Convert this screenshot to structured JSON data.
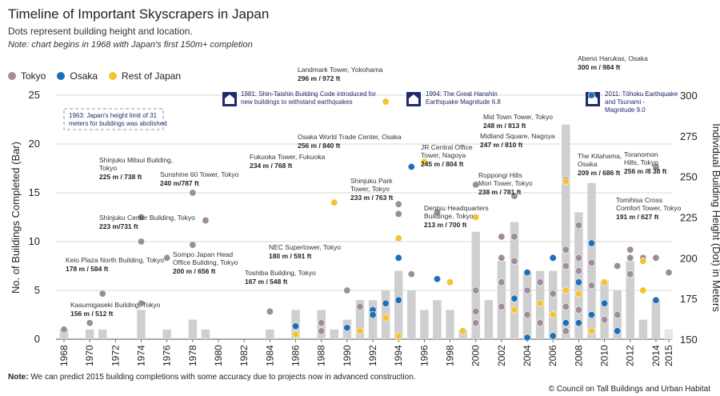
{
  "title": "Timeline of Important Skyscrapers in Japan",
  "subtitle": "Dots represent building height and location.",
  "note_top": "Note: chart begins in 1968 with Japan's first 150m+ completion",
  "legend": [
    {
      "label": "Tokyo",
      "color": "#a08b9c"
    },
    {
      "label": "Osaka",
      "color": "#1d6fb8"
    },
    {
      "label": "Rest of Japan",
      "color": "#f5c330"
    }
  ],
  "footnote_label": "Note:",
  "footnote_text": " We can predict 2015 building completions with some accuracy due to projects now in advanced construction.",
  "credit": "© Council on Tall Buildings and Urban Habitat",
  "chart_data": {
    "type": "bar",
    "xlabel": "",
    "ylabel": "No. of Buildings Completed (Bar)",
    "y2label": "Individual Building Height (Dot) in Meters",
    "ylim": [
      0,
      25
    ],
    "y2lim": [
      150,
      300
    ],
    "yticks": [
      0,
      5,
      10,
      15,
      20,
      25
    ],
    "y2ticks": [
      150,
      175,
      200,
      225,
      250,
      275,
      300
    ],
    "xticks": [
      1968,
      1970,
      1972,
      1974,
      1976,
      1978,
      1980,
      1982,
      1984,
      1986,
      1988,
      1990,
      1992,
      1994,
      1996,
      1998,
      2000,
      2002,
      2004,
      2006,
      2008,
      2010,
      2012,
      2014,
      2015
    ],
    "years": [
      1968,
      1969,
      1970,
      1971,
      1972,
      1973,
      1974,
      1975,
      1976,
      1977,
      1978,
      1979,
      1980,
      1981,
      1982,
      1983,
      1984,
      1985,
      1986,
      1987,
      1988,
      1989,
      1990,
      1991,
      1992,
      1993,
      1994,
      1995,
      1996,
      1997,
      1998,
      1999,
      2000,
      2001,
      2002,
      2003,
      2004,
      2005,
      2006,
      2007,
      2008,
      2009,
      2010,
      2011,
      2012,
      2013,
      2014,
      2015
    ],
    "bar_values": [
      1,
      0,
      1,
      1,
      0,
      0,
      3,
      0,
      1,
      0,
      2,
      1,
      0,
      0,
      0,
      0,
      1,
      0,
      3,
      0,
      3,
      1,
      2,
      4,
      4,
      5,
      7,
      5,
      3,
      4,
      3,
      1,
      11,
      4,
      8,
      12,
      7,
      7,
      7,
      22,
      13,
      16,
      6,
      5,
      8,
      2,
      4,
      1
    ],
    "grid": "horizontal",
    "legend_position": "top-left",
    "dots": [
      {
        "year": 1968,
        "height": 156,
        "city": "Tokyo"
      },
      {
        "year": 1970,
        "height": 160,
        "city": "Tokyo"
      },
      {
        "year": 1971,
        "height": 178,
        "city": "Tokyo"
      },
      {
        "year": 1974,
        "height": 172,
        "city": "Tokyo"
      },
      {
        "year": 1974,
        "height": 225,
        "city": "Tokyo"
      },
      {
        "year": 1974,
        "height": 210,
        "city": "Tokyo"
      },
      {
        "year": 1976,
        "height": 200,
        "city": "Tokyo"
      },
      {
        "year": 1978,
        "height": 240,
        "city": "Tokyo"
      },
      {
        "year": 1978,
        "height": 208,
        "city": "Tokyo"
      },
      {
        "year": 1979,
        "height": 223,
        "city": "Tokyo"
      },
      {
        "year": 1984,
        "height": 167,
        "city": "Tokyo"
      },
      {
        "year": 1986,
        "height": 158,
        "city": "Tokyo"
      },
      {
        "year": 1986,
        "height": 153,
        "city": "Rest of Japan"
      },
      {
        "year": 1986,
        "height": 158,
        "city": "Osaka"
      },
      {
        "year": 1988,
        "height": 160,
        "city": "Tokyo"
      },
      {
        "year": 1988,
        "height": 155,
        "city": "Tokyo"
      },
      {
        "year": 1989,
        "height": 234,
        "city": "Rest of Japan"
      },
      {
        "year": 1990,
        "height": 180,
        "city": "Tokyo"
      },
      {
        "year": 1990,
        "height": 157,
        "city": "Osaka"
      },
      {
        "year": 1991,
        "height": 170,
        "city": "Tokyo"
      },
      {
        "year": 1991,
        "height": 155,
        "city": "Rest of Japan"
      },
      {
        "year": 1992,
        "height": 168,
        "city": "Osaka"
      },
      {
        "year": 1992,
        "height": 165,
        "city": "Osaka"
      },
      {
        "year": 1993,
        "height": 172,
        "city": "Osaka"
      },
      {
        "year": 1993,
        "height": 296,
        "city": "Rest of Japan"
      },
      {
        "year": 1993,
        "height": 163,
        "city": "Rest of Japan"
      },
      {
        "year": 1994,
        "height": 233,
        "city": "Tokyo"
      },
      {
        "year": 1994,
        "height": 227,
        "city": "Tokyo"
      },
      {
        "year": 1994,
        "height": 212,
        "city": "Rest of Japan"
      },
      {
        "year": 1994,
        "height": 200,
        "city": "Osaka"
      },
      {
        "year": 1994,
        "height": 174,
        "city": "Osaka"
      },
      {
        "year": 1994,
        "height": 152,
        "city": "Rest of Japan"
      },
      {
        "year": 1995,
        "height": 256,
        "city": "Osaka"
      },
      {
        "year": 1995,
        "height": 190,
        "city": "Tokyo"
      },
      {
        "year": 1996,
        "height": 259,
        "city": "Rest of Japan"
      },
      {
        "year": 1997,
        "height": 228,
        "city": "Tokyo"
      },
      {
        "year": 1997,
        "height": 187,
        "city": "Osaka"
      },
      {
        "year": 1998,
        "height": 185,
        "city": "Rest of Japan"
      },
      {
        "year": 1999,
        "height": 155,
        "city": "Rest of Japan"
      },
      {
        "year": 2000,
        "height": 245,
        "city": "Rest of Japan"
      },
      {
        "year": 2000,
        "height": 245,
        "city": "Tokyo"
      },
      {
        "year": 2000,
        "height": 225,
        "city": "Rest of Japan"
      },
      {
        "year": 2000,
        "height": 180,
        "city": "Tokyo"
      },
      {
        "year": 2000,
        "height": 167,
        "city": "Tokyo"
      },
      {
        "year": 2000,
        "height": 160,
        "city": "Tokyo"
      },
      {
        "year": 2002,
        "height": 213,
        "city": "Tokyo"
      },
      {
        "year": 2002,
        "height": 200,
        "city": "Tokyo"
      },
      {
        "year": 2002,
        "height": 185,
        "city": "Tokyo"
      },
      {
        "year": 2002,
        "height": 170,
        "city": "Tokyo"
      },
      {
        "year": 2003,
        "height": 238,
        "city": "Tokyo"
      },
      {
        "year": 2003,
        "height": 213,
        "city": "Tokyo"
      },
      {
        "year": 2003,
        "height": 198,
        "city": "Tokyo"
      },
      {
        "year": 2003,
        "height": 175,
        "city": "Osaka"
      },
      {
        "year": 2003,
        "height": 168,
        "city": "Rest of Japan"
      },
      {
        "year": 2004,
        "height": 191,
        "city": "Osaka"
      },
      {
        "year": 2004,
        "height": 180,
        "city": "Tokyo"
      },
      {
        "year": 2004,
        "height": 165,
        "city": "Tokyo"
      },
      {
        "year": 2004,
        "height": 151,
        "city": "Osaka"
      },
      {
        "year": 2005,
        "height": 185,
        "city": "Tokyo"
      },
      {
        "year": 2005,
        "height": 172,
        "city": "Rest of Japan"
      },
      {
        "year": 2005,
        "height": 160,
        "city": "Tokyo"
      },
      {
        "year": 2006,
        "height": 200,
        "city": "Osaka"
      },
      {
        "year": 2006,
        "height": 178,
        "city": "Tokyo"
      },
      {
        "year": 2006,
        "height": 165,
        "city": "Rest of Japan"
      },
      {
        "year": 2006,
        "height": 152,
        "city": "Osaka"
      },
      {
        "year": 2007,
        "height": 248,
        "city": "Tokyo"
      },
      {
        "year": 2007,
        "height": 247,
        "city": "Rest of Japan"
      },
      {
        "year": 2007,
        "height": 205,
        "city": "Tokyo"
      },
      {
        "year": 2007,
        "height": 195,
        "city": "Tokyo"
      },
      {
        "year": 2007,
        "height": 180,
        "city": "Rest of Japan"
      },
      {
        "year": 2007,
        "height": 170,
        "city": "Tokyo"
      },
      {
        "year": 2007,
        "height": 160,
        "city": "Osaka"
      },
      {
        "year": 2007,
        "height": 155,
        "city": "Tokyo"
      },
      {
        "year": 2008,
        "height": 220,
        "city": "Tokyo"
      },
      {
        "year": 2008,
        "height": 200,
        "city": "Tokyo"
      },
      {
        "year": 2008,
        "height": 192,
        "city": "Tokyo"
      },
      {
        "year": 2008,
        "height": 185,
        "city": "Osaka"
      },
      {
        "year": 2008,
        "height": 178,
        "city": "Rest of Japan"
      },
      {
        "year": 2008,
        "height": 168,
        "city": "Tokyo"
      },
      {
        "year": 2008,
        "height": 160,
        "city": "Osaka"
      },
      {
        "year": 2009,
        "height": 300,
        "city": "Osaka"
      },
      {
        "year": 2009,
        "height": 209,
        "city": "Osaka"
      },
      {
        "year": 2009,
        "height": 197,
        "city": "Tokyo"
      },
      {
        "year": 2009,
        "height": 183,
        "city": "Tokyo"
      },
      {
        "year": 2009,
        "height": 165,
        "city": "Osaka"
      },
      {
        "year": 2009,
        "height": 155,
        "city": "Rest of Japan"
      },
      {
        "year": 2010,
        "height": 185,
        "city": "Rest of Japan"
      },
      {
        "year": 2010,
        "height": 172,
        "city": "Osaka"
      },
      {
        "year": 2010,
        "height": 162,
        "city": "Tokyo"
      },
      {
        "year": 2011,
        "height": 195,
        "city": "Tokyo"
      },
      {
        "year": 2011,
        "height": 165,
        "city": "Tokyo"
      },
      {
        "year": 2011,
        "height": 155,
        "city": "Osaka"
      },
      {
        "year": 2012,
        "height": 205,
        "city": "Tokyo"
      },
      {
        "year": 2012,
        "height": 200,
        "city": "Tokyo"
      },
      {
        "year": 2012,
        "height": 190,
        "city": "Tokyo"
      },
      {
        "year": 2013,
        "height": 200,
        "city": "Tokyo"
      },
      {
        "year": 2013,
        "height": 198,
        "city": "Rest of Japan"
      },
      {
        "year": 2013,
        "height": 180,
        "city": "Rest of Japan"
      },
      {
        "year": 2014,
        "height": 256,
        "city": "Tokyo"
      },
      {
        "year": 2014,
        "height": 200,
        "city": "Tokyo"
      },
      {
        "year": 2014,
        "height": 174,
        "city": "Osaka"
      },
      {
        "year": 2015,
        "height": 191,
        "city": "Tokyo"
      }
    ],
    "annotations": [
      {
        "name": "Kasumigaseki Building, Tokyo",
        "value": "156 m / 512 ft"
      },
      {
        "name": "Keio Plaza North Building, Tokyo",
        "value": "178 m / 584 ft"
      },
      {
        "name": "Shinjuku Mitsui Building, Tokyo",
        "value": "225 m / 738 ft"
      },
      {
        "name": "Shinjuku Center Building, Tokyo",
        "value": "223 m/731 ft"
      },
      {
        "name": "Sunshine 60 Tower, Tokyo",
        "value": "240 m/787 ft"
      },
      {
        "name": "Sompo Japan Head Office Building, Tokyo",
        "value": "200 m / 656 ft"
      },
      {
        "name": "Toshiba Building, Tokyo",
        "value": "167 m / 548 ft"
      },
      {
        "name": "NEC Supertower, Tokyo",
        "value": "180 m / 591 ft"
      },
      {
        "name": "Fukuoka Tower, Fukuoka",
        "value": "234 m / 768 ft"
      },
      {
        "name": "Landmark Tower, Yokohama",
        "value": "296 m / 972 ft"
      },
      {
        "name": "Osaka World Trade Center, Osaka",
        "value": "256 m / 840 ft"
      },
      {
        "name": "Shinjuku Park Tower, Tokyo",
        "value": "233 m / 763 ft"
      },
      {
        "name": "JR Central Office Tower, Nagoya",
        "value": "245 m / 804 ft"
      },
      {
        "name": "Dentsu Headquarters Buildinge, Tokyo",
        "value": "213 m / 700 ft"
      },
      {
        "name": "Roppongi Hills Mori Tower, Tokyo",
        "value": "238 m / 781 ft"
      },
      {
        "name": "Mid Town Tower, Tokyo",
        "value": "248 m / 813 ft"
      },
      {
        "name": "Midland Square, Nagoya",
        "value": "247 m / 810 ft"
      },
      {
        "name": "The Kitahama, Osaka",
        "value": "209 m / 686 ft"
      },
      {
        "name": "Abeno Harukas, Osaka",
        "value": "300 m / 984 ft"
      },
      {
        "name": "Toranomon Hills, Tokyo",
        "value": "256 m /8 38 ft"
      },
      {
        "name": "Tomihisa Cross Comfort Tower, Tokyo",
        "value": "191 m / 627 ft"
      }
    ],
    "events": [
      {
        "year": 1963,
        "text": "1963: Japan's height limit of 31 meters for buildings was abolished"
      },
      {
        "year": 1981,
        "text": "1981: Shin-Taishin Building Code introduced for new buildings to withstand earthquakes"
      },
      {
        "year": 1994,
        "text": "1994: The Great Hanshin Earthquake Magnitude 6.8"
      },
      {
        "year": 2011,
        "text": "2011: Tōhoku Earthquake and Tsunami - Magnitude 9.0"
      }
    ]
  }
}
